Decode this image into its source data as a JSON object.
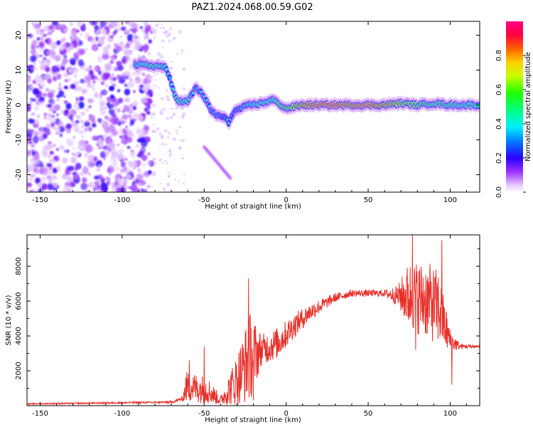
{
  "title": "PAZ1.2024.068.00.59.G02",
  "chart_data": [
    {
      "type": "heatmap",
      "xlabel": "Height of straight line (km)",
      "ylabel": "Frequency (Hz)",
      "xlim": [
        -158,
        118
      ],
      "ylim": [
        -25,
        24
      ],
      "xticks": [
        -150,
        -100,
        -50,
        0,
        50,
        100
      ],
      "yticks": [
        -20,
        -10,
        0,
        10,
        20
      ],
      "colorbar": {
        "label": "Normalized spectral amplitude",
        "range": [
          0,
          1
        ],
        "ticks": [
          "0.0",
          "0.2",
          "0.4",
          "0.6",
          "0.8"
        ],
        "colormap": "gist_rainbow_r"
      },
      "noise_region_x": [
        -158,
        -82
      ],
      "ridge": [
        {
          "x": -92,
          "y": 11.5,
          "a": 0.45
        },
        {
          "x": -86,
          "y": 11.5,
          "a": 0.5
        },
        {
          "x": -80,
          "y": 11.2,
          "a": 0.55
        },
        {
          "x": -74,
          "y": 11.0,
          "a": 0.45
        },
        {
          "x": -71,
          "y": 7.5,
          "a": 0.35
        },
        {
          "x": -68,
          "y": 3.0,
          "a": 0.45
        },
        {
          "x": -65,
          "y": 1.0,
          "a": 0.5
        },
        {
          "x": -60,
          "y": 1.0,
          "a": 0.5
        },
        {
          "x": -55,
          "y": 5.0,
          "a": 0.35
        },
        {
          "x": -50,
          "y": 2.5,
          "a": 0.4
        },
        {
          "x": -46,
          "y": -1.5,
          "a": 0.35
        },
        {
          "x": -42,
          "y": -3.0,
          "a": 0.35
        },
        {
          "x": -38,
          "y": -3.5,
          "a": 0.3
        },
        {
          "x": -35,
          "y": -5.0,
          "a": 0.35
        },
        {
          "x": -32,
          "y": -2.0,
          "a": 0.3
        },
        {
          "x": -28,
          "y": -1.0,
          "a": 0.35
        },
        {
          "x": -22,
          "y": 0.0,
          "a": 0.45
        },
        {
          "x": -15,
          "y": 0.5,
          "a": 0.5
        },
        {
          "x": -8,
          "y": 1.5,
          "a": 0.5
        },
        {
          "x": 0,
          "y": -1.0,
          "a": 0.6
        },
        {
          "x": 10,
          "y": 0.0,
          "a": 0.8
        },
        {
          "x": 20,
          "y": 0.0,
          "a": 0.9
        },
        {
          "x": 30,
          "y": 0.0,
          "a": 0.9
        },
        {
          "x": 40,
          "y": 0.0,
          "a": 0.85
        },
        {
          "x": 50,
          "y": 0.0,
          "a": 0.9
        },
        {
          "x": 60,
          "y": 0.0,
          "a": 0.8
        },
        {
          "x": 70,
          "y": 0.5,
          "a": 0.7
        },
        {
          "x": 80,
          "y": 0.0,
          "a": 0.6
        },
        {
          "x": 90,
          "y": 0.5,
          "a": 0.55
        },
        {
          "x": 100,
          "y": 0.0,
          "a": 0.55
        },
        {
          "x": 110,
          "y": 0.0,
          "a": 0.5
        },
        {
          "x": 118,
          "y": 0.0,
          "a": 0.5
        }
      ]
    },
    {
      "type": "line",
      "xlabel": "Height of straight line (km)",
      "ylabel": "SNR (10 * v/v)",
      "xlim": [
        -158,
        118
      ],
      "ylim": [
        0,
        9800
      ],
      "xticks": [
        -150,
        -100,
        -50,
        0,
        50,
        100
      ],
      "yticks": [
        2000,
        4000,
        6000,
        8000
      ],
      "color": "#e8302a",
      "envelope": [
        {
          "x": -158,
          "mean": 100,
          "spread": 30
        },
        {
          "x": -70,
          "mean": 200,
          "spread": 60
        },
        {
          "x": -63,
          "mean": 400,
          "spread": 150
        },
        {
          "x": -61,
          "mean": 1100,
          "spread": 900
        },
        {
          "x": -48,
          "mean": 900,
          "spread": 800
        },
        {
          "x": -40,
          "mean": 300,
          "spread": 250
        },
        {
          "x": -30,
          "mean": 1500,
          "spread": 1500
        },
        {
          "x": -22,
          "mean": 2800,
          "spread": 2600
        },
        {
          "x": -15,
          "mean": 3200,
          "spread": 900
        },
        {
          "x": -5,
          "mean": 3600,
          "spread": 900
        },
        {
          "x": 5,
          "mean": 4600,
          "spread": 700
        },
        {
          "x": 15,
          "mean": 5400,
          "spread": 500
        },
        {
          "x": 30,
          "mean": 6200,
          "spread": 250
        },
        {
          "x": 40,
          "mean": 6450,
          "spread": 200
        },
        {
          "x": 60,
          "mean": 6450,
          "spread": 200
        },
        {
          "x": 68,
          "mean": 6300,
          "spread": 600
        },
        {
          "x": 75,
          "mean": 6300,
          "spread": 2000
        },
        {
          "x": 85,
          "mean": 6100,
          "spread": 2200
        },
        {
          "x": 93,
          "mean": 5600,
          "spread": 2200
        },
        {
          "x": 100,
          "mean": 3700,
          "spread": 700
        },
        {
          "x": 106,
          "mean": 3400,
          "spread": 150
        },
        {
          "x": 118,
          "mean": 3400,
          "spread": 100
        }
      ],
      "spikes": [
        {
          "x": -59,
          "y": 2600
        },
        {
          "x": -50,
          "y": 3400
        },
        {
          "x": -23,
          "y": 7300
        },
        {
          "x": -20,
          "y": 300
        },
        {
          "x": 77,
          "y": 9800
        },
        {
          "x": 79,
          "y": 3200
        },
        {
          "x": 95,
          "y": 9500
        },
        {
          "x": 101,
          "y": 1200
        }
      ]
    }
  ]
}
